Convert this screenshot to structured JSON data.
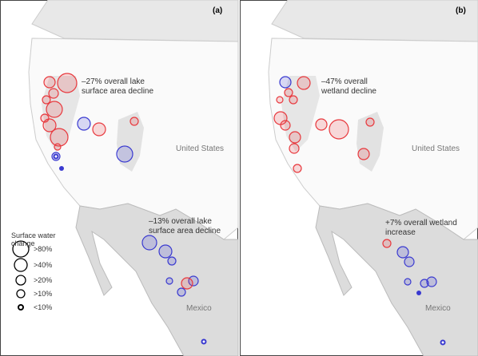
{
  "panels": [
    {
      "label": "(a)",
      "annotations": [
        "–27% overall lake surface area decline",
        "–13% overall lake surface area decline"
      ],
      "places": [
        "United States",
        "Mexico"
      ]
    },
    {
      "label": "(b)",
      "annotations": [
        "–47% overall wetland decline",
        "+7% overall wetland increase"
      ],
      "places": [
        "United States",
        "Mexico"
      ]
    }
  ],
  "legend": {
    "title": "Surface water change",
    "items": [
      ">80%",
      ">40%",
      ">20%",
      ">10%",
      "<10%"
    ]
  }
}
